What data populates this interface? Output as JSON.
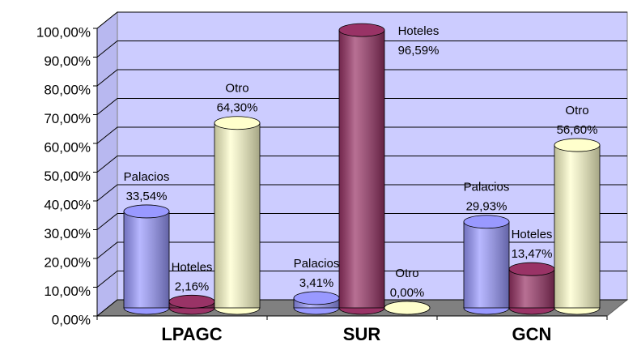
{
  "chart_data": {
    "type": "bar3d",
    "categories": [
      "LPAGC",
      "SUR",
      "GCN"
    ],
    "series": [
      {
        "name": "Palacios",
        "color": "#9999ff",
        "values": [
          33.54,
          3.41,
          29.93
        ],
        "value_labels": [
          "33,54%",
          "3,41%",
          "29,93%"
        ]
      },
      {
        "name": "Hoteles",
        "color": "#993366",
        "values": [
          2.16,
          96.59,
          13.47
        ],
        "value_labels": [
          "2,16%",
          "96,59%",
          "13,47%"
        ]
      },
      {
        "name": "Otro",
        "color": "#ffffcc",
        "values": [
          64.3,
          0.0,
          56.6
        ],
        "value_labels": [
          "64,30%",
          "0,00%",
          "56,60%"
        ]
      }
    ],
    "ylim": [
      0,
      100
    ],
    "yticks": [
      {
        "value": 0,
        "label": "0,00%"
      },
      {
        "value": 10,
        "label": "10,00%"
      },
      {
        "value": 20,
        "label": "20,00%"
      },
      {
        "value": 30,
        "label": "30,00%"
      },
      {
        "value": 40,
        "label": "40,00%"
      },
      {
        "value": 50,
        "label": "50,00%"
      },
      {
        "value": 60,
        "label": "60,00%"
      },
      {
        "value": 70,
        "label": "70,00%"
      },
      {
        "value": 80,
        "label": "80,00%"
      },
      {
        "value": 90,
        "label": "90,00%"
      },
      {
        "value": 100,
        "label": "100,00%"
      }
    ],
    "grid": true
  }
}
